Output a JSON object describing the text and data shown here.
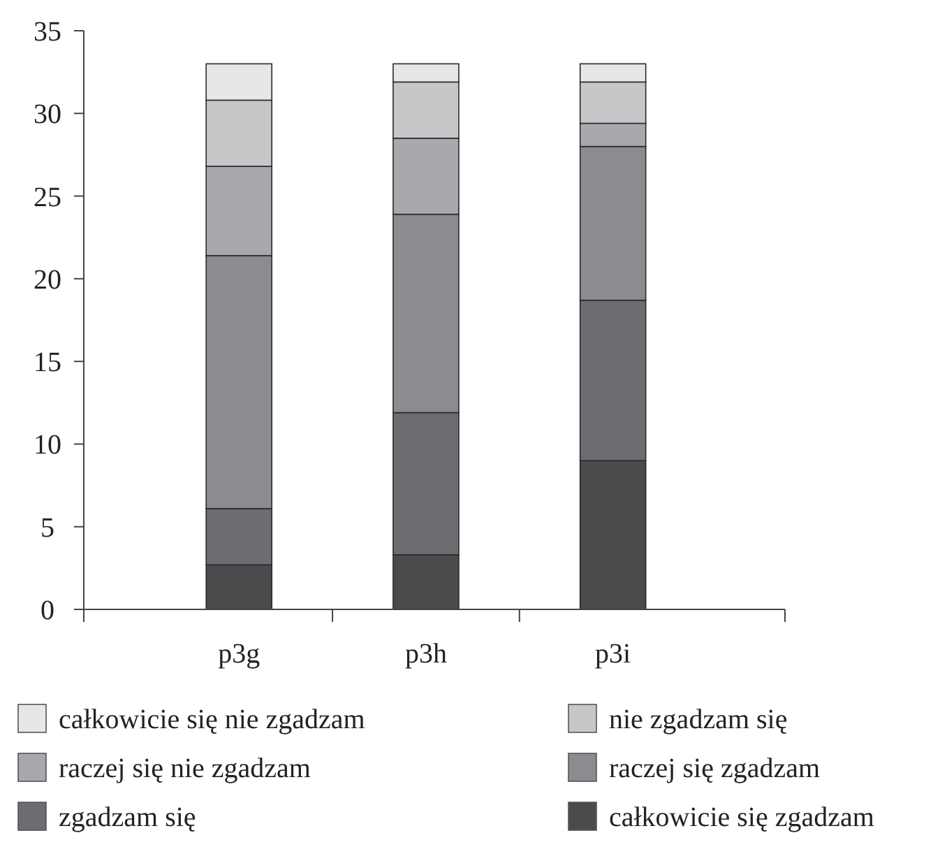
{
  "chart_data": {
    "type": "bar",
    "stacked": true,
    "categories": [
      "p3g",
      "p3h",
      "p3i"
    ],
    "ylim": [
      0,
      35
    ],
    "yticks": [
      0,
      5,
      10,
      15,
      20,
      25,
      30,
      35
    ],
    "legend": "bottom",
    "grid": false,
    "series": [
      {
        "name": "całkowicie się zgadzam",
        "color": "#4a4b4d",
        "values": [
          2.7,
          3.3,
          9.0
        ]
      },
      {
        "name": "zgadzam się",
        "color": "#6c6d71",
        "values": [
          3.4,
          8.6,
          9.7
        ]
      },
      {
        "name": "raczej się zgadzam",
        "color": "#8b8c90",
        "values": [
          15.3,
          12.0,
          9.3
        ]
      },
      {
        "name": "raczej się nie zgadzam",
        "color": "#a8a9ac",
        "values": [
          5.4,
          4.6,
          1.4
        ]
      },
      {
        "name": "nie zgadzam się",
        "color": "#c6c7c9",
        "values": [
          4.0,
          3.4,
          2.5
        ]
      },
      {
        "name": "całkowicie się nie zgadzam",
        "color": "#e6e7e8",
        "values": [
          2.2,
          1.1,
          1.1
        ]
      }
    ]
  }
}
